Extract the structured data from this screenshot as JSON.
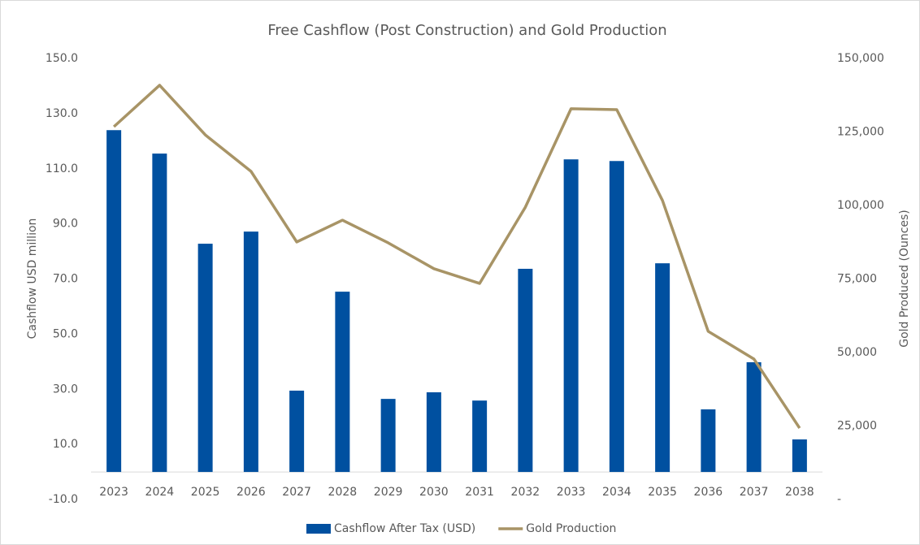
{
  "chart_data": {
    "type": "bar_line",
    "title": "Free Cashflow (Post Construction) and Gold Production",
    "ylabel": "Cashflow USD million",
    "y2label": "Gold Produced (Ounces)",
    "categories": [
      "2023",
      "2024",
      "2025",
      "2026",
      "2027",
      "2028",
      "2029",
      "2030",
      "2031",
      "2032",
      "2033",
      "2034",
      "2035",
      "2036",
      "2037",
      "2038"
    ],
    "series": [
      {
        "name": "Cashflow After Tax (USD)",
        "color": "#0050a0",
        "kind": "bar",
        "values": [
          124.0,
          115.5,
          82.8,
          87.2,
          29.5,
          65.4,
          26.5,
          28.9,
          25.9,
          73.7,
          113.4,
          112.8,
          75.7,
          22.7,
          39.8,
          11.8
        ]
      },
      {
        "name": "Gold Production",
        "color": "#a89466",
        "kind": "line",
        "axis": "y2",
        "values": [
          126800,
          140900,
          124000,
          111600,
          87600,
          95000,
          87300,
          78500,
          73500,
          99400,
          132900,
          132600,
          101700,
          57200,
          47800,
          24300
        ]
      }
    ],
    "ylim": [
      -10,
      150
    ],
    "yticks": [
      {
        "value": -10,
        "label": "-10.0"
      },
      {
        "value": 10,
        "label": "10.0"
      },
      {
        "value": 30,
        "label": "30.0"
      },
      {
        "value": 50,
        "label": "50.0"
      },
      {
        "value": 70,
        "label": "70.0"
      },
      {
        "value": 90,
        "label": "90.0"
      },
      {
        "value": 110,
        "label": "110.0"
      },
      {
        "value": 130,
        "label": "130.0"
      },
      {
        "value": 150,
        "label": "150.0"
      }
    ],
    "y2lim": [
      0,
      150000
    ],
    "y2ticks": [
      {
        "value": 0,
        "label": "-"
      },
      {
        "value": 25000,
        "label": "25,000"
      },
      {
        "value": 50000,
        "label": "50,000"
      },
      {
        "value": 75000,
        "label": "75,000"
      },
      {
        "value": 100000,
        "label": "100,000"
      },
      {
        "value": 125000,
        "label": "125,000"
      },
      {
        "value": 150000,
        "label": "150,000"
      }
    ],
    "legend": "bottom"
  }
}
